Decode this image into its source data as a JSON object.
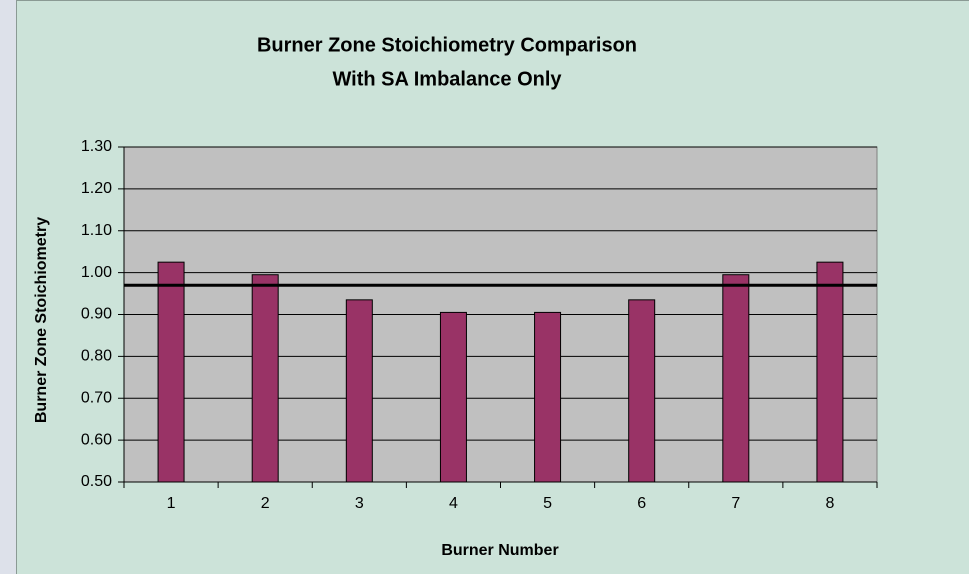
{
  "chart_data": {
    "type": "bar",
    "title": [
      "Burner Zone Stoichiometry Comparison",
      "With SA Imbalance Only"
    ],
    "x_label": "Burner Number",
    "y_label": "Burner Zone Stoichiometry",
    "categories": [
      "1",
      "2",
      "3",
      "4",
      "5",
      "6",
      "7",
      "8"
    ],
    "values": [
      1.025,
      0.995,
      0.935,
      0.905,
      0.905,
      0.935,
      0.995,
      1.025
    ],
    "color": "#993366",
    "reference_line": 0.97,
    "ylim": [
      0.5,
      1.3
    ],
    "yticks": [
      {
        "value": 0.5,
        "label": "0.50"
      },
      {
        "value": 0.6,
        "label": "0.60"
      },
      {
        "value": 0.7,
        "label": "0.70"
      },
      {
        "value": 0.8,
        "label": "0.80"
      },
      {
        "value": 0.9,
        "label": "0.90"
      },
      {
        "value": 1.0,
        "label": "1.00"
      },
      {
        "value": 1.1,
        "label": "1.10"
      },
      {
        "value": 1.2,
        "label": "1.20"
      },
      {
        "value": 1.3,
        "label": "1.30"
      }
    ],
    "grid": true
  }
}
